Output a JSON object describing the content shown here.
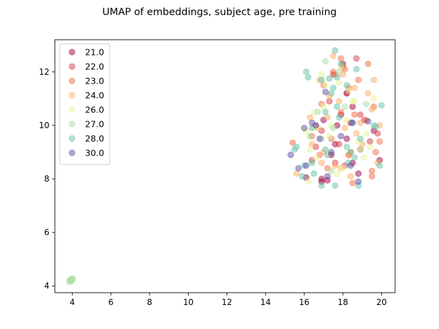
{
  "chart_data": {
    "type": "scatter",
    "title": "UMAP of embeddings, subject age, pre training",
    "xlabel": "",
    "ylabel": "",
    "xlim": [
      3.1,
      20.7
    ],
    "ylim": [
      3.75,
      13.2
    ],
    "xticks": [
      4,
      6,
      8,
      10,
      12,
      14,
      16,
      18,
      20
    ],
    "yticks": [
      4,
      6,
      8,
      10,
      12
    ],
    "grid": false,
    "legend_position": "top-left",
    "point_alpha": 0.5,
    "series": [
      {
        "name": "21.0",
        "color": "#9e0142",
        "x": [
          18.4,
          17.0,
          16.9,
          17.2,
          17.7,
          18.5,
          18.0,
          19.6,
          19.9,
          17.4,
          18.5,
          16.1,
          18.2,
          17.6,
          18.8,
          17.9,
          16.9,
          18.2
        ],
        "y": [
          10.1,
          10.2,
          8.0,
          7.95,
          10.0,
          10.7,
          12.3,
          9.8,
          8.7,
          8.9,
          8.6,
          8.05,
          9.5,
          9.3,
          8.2,
          10.4,
          7.9,
          11.2
        ]
      },
      {
        "name": "22.0",
        "color": "#d53e4f",
        "x": [
          17.5,
          18.1,
          18.7,
          19.4,
          16.6,
          17.6,
          18.9,
          16.9,
          19.8,
          18.3,
          17.3,
          19.1,
          18.2,
          16.4,
          17.8
        ],
        "y": [
          11.9,
          8.5,
          12.5,
          9.4,
          9.2,
          8.6,
          10.4,
          9.8,
          9.7,
          8.9,
          10.9,
          10.2,
          11.2,
          8.7,
          9.3
        ]
      },
      {
        "name": "23.0",
        "color": "#f46d43",
        "x": [
          17.5,
          17.9,
          18.3,
          18.1,
          17.0,
          19.2,
          19.9,
          18.6,
          16.6,
          17.4,
          18.9,
          19.5,
          15.4,
          16.8,
          17.2,
          18.5,
          19.7,
          17.6,
          18.0,
          16.4,
          19.3,
          18.8,
          17.9,
          19.6,
          16.9,
          18.4,
          19.5
        ],
        "y": [
          12.0,
          12.5,
          11.4,
          12.1,
          11.5,
          10.2,
          9.4,
          10.4,
          10.0,
          9.5,
          9.1,
          8.1,
          9.35,
          8.9,
          8.4,
          7.85,
          9.0,
          11.9,
          12.2,
          9.6,
          12.3,
          11.7,
          10.5,
          10.7,
          10.8,
          9.0,
          8.3
        ]
      },
      {
        "name": "24.0",
        "color": "#fdae61",
        "x": [
          17.5,
          18.0,
          18.6,
          19.3,
          17.2,
          16.7,
          16.4,
          19.8,
          17.9,
          18.3,
          19.5,
          17.8,
          16.8,
          18.9,
          17.0,
          19.6,
          18.4,
          16.3,
          15.6,
          17.3,
          18.7,
          19.9,
          16.9,
          18.1,
          17.6,
          19.0
        ],
        "y": [
          12.6,
          11.9,
          11.4,
          11.2,
          10.3,
          9.9,
          9.3,
          8.6,
          8.4,
          8.9,
          10.6,
          10.9,
          11.7,
          10.1,
          9.0,
          11.7,
          8.1,
          10.3,
          8.2,
          11.1,
          9.7,
          10.0,
          8.6,
          9.9,
          8.5,
          9.3
        ]
      },
      {
        "name": "26.0",
        "color": "#e6f598",
        "x": [
          17.9,
          18.3,
          17.1,
          19.6,
          16.5,
          17.4,
          16.1,
          18.8,
          19.1,
          17.7,
          16.9,
          18.2,
          16.6,
          17.3,
          18.6,
          19.4,
          16.2,
          17.8,
          16.5,
          18.0,
          17.0,
          19.2,
          16.3,
          18.5
        ],
        "y": [
          12.2,
          11.3,
          11.5,
          11.0,
          10.5,
          10.0,
          9.8,
          9.4,
          8.8,
          8.2,
          11.9,
          10.2,
          8.8,
          9.6,
          10.9,
          9.2,
          7.9,
          11.6,
          9.9,
          8.4,
          10.7,
          9.7,
          9.1,
          10.9
        ]
      },
      {
        "name": "27.0",
        "color": "#abdda4",
        "x": [
          3.85,
          3.9,
          3.95,
          4.0,
          3.95,
          3.88,
          4.02,
          17.1,
          16.3,
          18.1,
          17.8,
          16.7,
          17.5,
          18.9,
          19.2,
          16.9,
          17.4
        ],
        "y": [
          4.15,
          4.2,
          4.25,
          4.28,
          4.18,
          4.22,
          4.24,
          12.4,
          9.6,
          10.7,
          12.0,
          10.5,
          9.9,
          9.1,
          10.8,
          9.5,
          8.3
        ]
      },
      {
        "name": "28.0",
        "color": "#66c2a5",
        "x": [
          17.6,
          17.3,
          17.9,
          17.7,
          16.2,
          18.2,
          17.4,
          16.9,
          17.1,
          17.7,
          18.5,
          16.4,
          17.8,
          15.6,
          16.0,
          15.9,
          16.5,
          17.2,
          18.6,
          19.9,
          18.3,
          16.9,
          17.6,
          18.8,
          18.2,
          17.1,
          16.1,
          19.7,
          18.9,
          18.4,
          15.5,
          17.5,
          18.7,
          19.6,
          20.0,
          16.4
        ],
        "y": [
          12.8,
          11.75,
          12.3,
          11.8,
          11.8,
          11.5,
          11.2,
          11.7,
          10.5,
          10.7,
          10.1,
          9.9,
          10.3,
          9.2,
          8.5,
          8.1,
          8.2,
          8.9,
          8.8,
          8.5,
          8.6,
          7.75,
          7.75,
          7.75,
          9.2,
          9.1,
          12.0,
          9.95,
          9.5,
          9.0,
          9.1,
          11.4,
          12.1,
          10.0,
          10.75,
          8.6
        ]
      },
      {
        "name": "30.0",
        "color": "#5e4fa2",
        "x": [
          17.1,
          16.6,
          16.4,
          15.3,
          16.1,
          17.2,
          16.0,
          18.5,
          19.3,
          17.4,
          18.8,
          15.7,
          16.8,
          17.9,
          18.4
        ],
        "y": [
          11.25,
          10.0,
          10.1,
          8.9,
          8.5,
          8.1,
          9.9,
          10.1,
          10.15,
          9.0,
          7.9,
          8.4,
          9.5,
          9.6,
          8.5
        ]
      }
    ]
  }
}
